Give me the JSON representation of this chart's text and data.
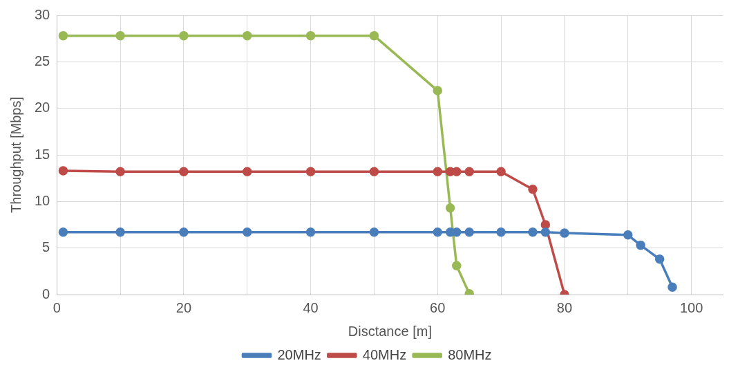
{
  "chart_data": {
    "type": "line",
    "xlabel": "Disctance [m]",
    "ylabel": "Throughput [Mbps]",
    "xlim": [
      0,
      105
    ],
    "xticks": [
      0,
      {
        "value": 10,
        "label": null
      },
      20,
      {
        "value": 30,
        "label": null
      },
      40,
      {
        "value": 50,
        "label": null
      },
      60,
      {
        "value": 70,
        "label": null
      },
      80,
      {
        "value": 90,
        "label": null
      },
      100
    ],
    "ylim": [
      0,
      30
    ],
    "yticks": [
      0,
      5,
      10,
      15,
      20,
      25,
      30
    ],
    "grid": true,
    "legend": "bottom",
    "marker": "circle",
    "line_style": "solid",
    "series": [
      {
        "name": "20MHz",
        "color": "#4a7ebb",
        "x": [
          1,
          10,
          20,
          30,
          40,
          50,
          60,
          62,
          63,
          65,
          70,
          75,
          77,
          80,
          90,
          92,
          95,
          97
        ],
        "values": [
          6.7,
          6.7,
          6.7,
          6.7,
          6.7,
          6.7,
          6.7,
          6.7,
          6.7,
          6.7,
          6.7,
          6.7,
          6.7,
          6.6,
          6.4,
          5.3,
          3.8,
          0.8
        ]
      },
      {
        "name": "40MHz",
        "color": "#be4b48",
        "x": [
          1,
          10,
          20,
          30,
          40,
          50,
          60,
          62,
          63,
          65,
          70,
          75,
          77,
          80
        ],
        "values": [
          13.3,
          13.2,
          13.2,
          13.2,
          13.2,
          13.2,
          13.2,
          13.2,
          13.2,
          13.2,
          13.2,
          11.3,
          7.5,
          0
        ]
      },
      {
        "name": "80MHz",
        "color": "#98b954",
        "x": [
          1,
          10,
          20,
          30,
          40,
          50,
          60,
          62,
          63,
          65
        ],
        "values": [
          27.8,
          27.8,
          27.8,
          27.8,
          27.8,
          27.8,
          21.9,
          9.3,
          3.1,
          0.1
        ]
      }
    ]
  }
}
